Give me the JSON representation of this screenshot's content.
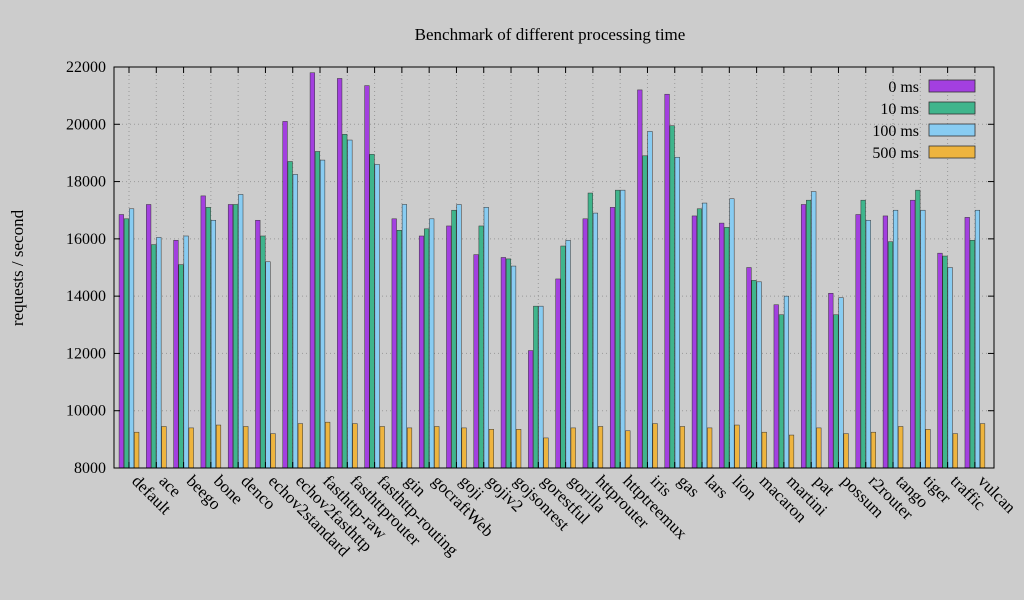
{
  "chart_data": {
    "type": "bar",
    "title": "Benchmark of different processing time",
    "xlabel": "",
    "ylabel": "requests / second",
    "ylim": [
      8000,
      22000
    ],
    "yticks": [
      8000,
      10000,
      12000,
      14000,
      16000,
      18000,
      20000,
      22000
    ],
    "grid": true,
    "legend_position": "top-right",
    "categories": [
      "default",
      "ace",
      "beego",
      "bone",
      "denco",
      "echov2standard",
      "echov2fasthttp",
      "fasthttp-raw",
      "fasthttprouter",
      "fasthttp-routing",
      "gin",
      "gocraftWeb",
      "goji",
      "gojiv2",
      "gojsonrest",
      "gorestful",
      "gorilla",
      "httprouter",
      "httptreemux",
      "iris",
      "gas",
      "lars",
      "lion",
      "macaron",
      "martini",
      "pat",
      "possum",
      "r2router",
      "tango",
      "tiger",
      "traffic",
      "vulcan"
    ],
    "series": [
      {
        "name": "0 ms",
        "color": "#a33fe0",
        "values": [
          16850,
          17200,
          15950,
          17500,
          17200,
          16650,
          20100,
          21800,
          21600,
          21350,
          16700,
          16100,
          16450,
          15450,
          15350,
          12100,
          14600,
          16700,
          17100,
          21200,
          21050,
          16800,
          16550,
          15000,
          13700,
          17200,
          14100,
          16850,
          16800,
          17350,
          15500,
          16750
        ]
      },
      {
        "name": "10 ms",
        "color": "#3fb58c",
        "values": [
          16700,
          15800,
          15100,
          17100,
          17200,
          16100,
          18700,
          19050,
          19650,
          18950,
          16300,
          16350,
          17000,
          16450,
          15300,
          13650,
          15750,
          17600,
          17700,
          18900,
          19950,
          17050,
          16400,
          14550,
          13350,
          17350,
          13350,
          17350,
          15900,
          17700,
          15400,
          15950
        ]
      },
      {
        "name": "100 ms",
        "color": "#88ccf2",
        "values": [
          17050,
          16050,
          16100,
          16650,
          17550,
          15200,
          18250,
          18750,
          19450,
          18600,
          17200,
          16700,
          17200,
          17100,
          15050,
          13650,
          15950,
          16900,
          17700,
          19750,
          18850,
          17250,
          17400,
          14500,
          14000,
          17650,
          13950,
          16650,
          17000,
          17000,
          15000,
          17000
        ]
      },
      {
        "name": "500 ms",
        "color": "#eeb43e",
        "values": [
          9250,
          9450,
          9400,
          9500,
          9450,
          9200,
          9550,
          9600,
          9550,
          9450,
          9400,
          9450,
          9400,
          9350,
          9350,
          9050,
          9400,
          9450,
          9300,
          9550,
          9450,
          9400,
          9500,
          9250,
          9150,
          9400,
          9200,
          9250,
          9450,
          9350,
          9200,
          9550
        ]
      }
    ]
  }
}
